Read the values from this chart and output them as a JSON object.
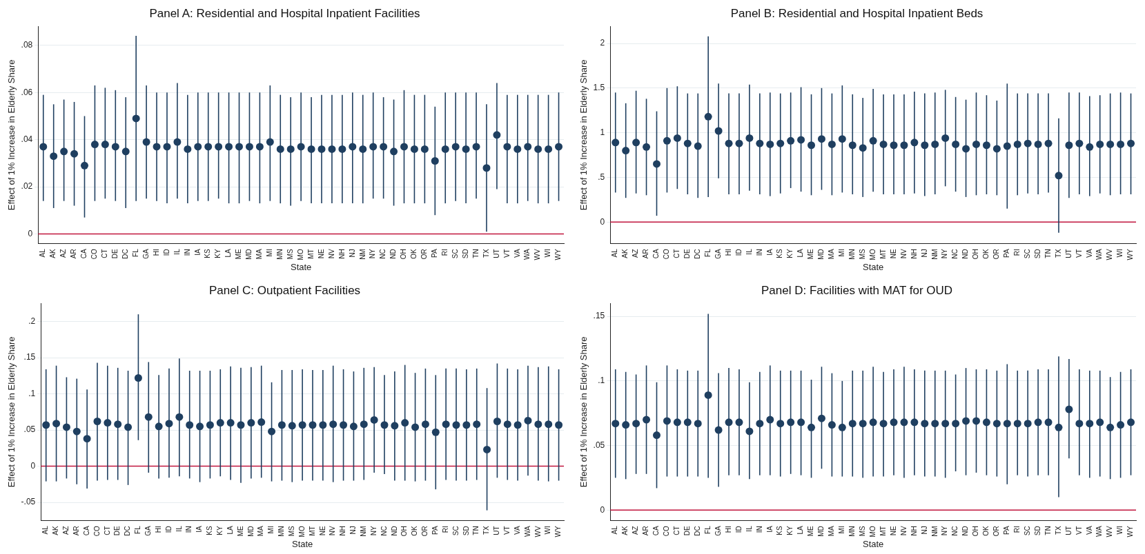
{
  "chart_data": [
    {
      "type": "scatter",
      "title": "Panel A: Residential and Hospital Inpatient Facilities",
      "xlabel": "State",
      "ylabel": "Effect of 1% Increase in Elderly Share",
      "color": "#1f3f60",
      "marker": "circle",
      "grid": "y",
      "legend": false,
      "categories": [
        "AL",
        "AK",
        "AZ",
        "AR",
        "CA",
        "CO",
        "CT",
        "DE",
        "DC",
        "FL",
        "GA",
        "HI",
        "ID",
        "IL",
        "IN",
        "IA",
        "KS",
        "KY",
        "LA",
        "ME",
        "MD",
        "MA",
        "MI",
        "MN",
        "MS",
        "MO",
        "MT",
        "NE",
        "NV",
        "NH",
        "NJ",
        "NM",
        "NY",
        "NC",
        "ND",
        "OH",
        "OK",
        "OR",
        "PA",
        "RI",
        "SC",
        "SD",
        "TN",
        "TX",
        "UT",
        "VT",
        "VA",
        "WA",
        "WV",
        "WI",
        "WY"
      ],
      "values": [
        0.037,
        0.033,
        0.035,
        0.034,
        0.029,
        0.038,
        0.038,
        0.037,
        0.035,
        0.049,
        0.039,
        0.037,
        0.037,
        0.039,
        0.036,
        0.037,
        0.037,
        0.037,
        0.037,
        0.037,
        0.037,
        0.037,
        0.039,
        0.036,
        0.036,
        0.037,
        0.036,
        0.036,
        0.036,
        0.036,
        0.037,
        0.036,
        0.037,
        0.037,
        0.035,
        0.037,
        0.036,
        0.036,
        0.031,
        0.036,
        0.037,
        0.036,
        0.037,
        0.028,
        0.042,
        0.037,
        0.036,
        0.037,
        0.036,
        0.036,
        0.037
      ],
      "errors": [
        [
          0.014,
          0.059
        ],
        [
          0.011,
          0.055
        ],
        [
          0.014,
          0.057
        ],
        [
          0.012,
          0.056
        ],
        [
          0.007,
          0.05
        ],
        [
          0.014,
          0.063
        ],
        [
          0.015,
          0.062
        ],
        [
          0.014,
          0.061
        ],
        [
          0.011,
          0.058
        ],
        [
          0.014,
          0.084
        ],
        [
          0.015,
          0.063
        ],
        [
          0.014,
          0.06
        ],
        [
          0.013,
          0.06
        ],
        [
          0.015,
          0.064
        ],
        [
          0.013,
          0.059
        ],
        [
          0.014,
          0.06
        ],
        [
          0.014,
          0.06
        ],
        [
          0.015,
          0.06
        ],
        [
          0.013,
          0.06
        ],
        [
          0.013,
          0.06
        ],
        [
          0.014,
          0.06
        ],
        [
          0.013,
          0.06
        ],
        [
          0.014,
          0.063
        ],
        [
          0.013,
          0.059
        ],
        [
          0.012,
          0.058
        ],
        [
          0.014,
          0.06
        ],
        [
          0.013,
          0.058
        ],
        [
          0.013,
          0.059
        ],
        [
          0.013,
          0.059
        ],
        [
          0.013,
          0.059
        ],
        [
          0.013,
          0.06
        ],
        [
          0.013,
          0.059
        ],
        [
          0.015,
          0.06
        ],
        [
          0.015,
          0.058
        ],
        [
          0.012,
          0.057
        ],
        [
          0.013,
          0.061
        ],
        [
          0.013,
          0.059
        ],
        [
          0.013,
          0.059
        ],
        [
          0.008,
          0.054
        ],
        [
          0.013,
          0.06
        ],
        [
          0.014,
          0.06
        ],
        [
          0.013,
          0.06
        ],
        [
          0.015,
          0.06
        ],
        [
          0.001,
          0.055
        ],
        [
          0.019,
          0.064
        ],
        [
          0.013,
          0.059
        ],
        [
          0.013,
          0.059
        ],
        [
          0.014,
          0.059
        ],
        [
          0.013,
          0.059
        ],
        [
          0.013,
          0.059
        ],
        [
          0.014,
          0.06
        ]
      ],
      "ylim": [
        -0.004,
        0.088
      ],
      "yticks": [
        0,
        {
          "value": 0.02,
          "label": ".02"
        },
        {
          "value": 0.04,
          "label": ".04"
        },
        {
          "value": 0.06,
          "label": ".06"
        },
        {
          "value": 0.08,
          "label": ".08"
        }
      ],
      "ref_lines": [
        {
          "axis": "y",
          "value": 0,
          "color": "#c0143c"
        }
      ]
    },
    {
      "type": "scatter",
      "title": "Panel B: Residential and Hospital Inpatient Beds",
      "xlabel": "State",
      "ylabel": "Effect of 1% Increase in Elderly Share",
      "color": "#1f3f60",
      "marker": "circle",
      "grid": "y",
      "legend": false,
      "categories": [
        "AL",
        "AK",
        "AZ",
        "AR",
        "CA",
        "CO",
        "CT",
        "DE",
        "DC",
        "FL",
        "GA",
        "HI",
        "ID",
        "IL",
        "IN",
        "IA",
        "KS",
        "KY",
        "LA",
        "ME",
        "MD",
        "MA",
        "MI",
        "MN",
        "MS",
        "MO",
        "MT",
        "NE",
        "NV",
        "NH",
        "NJ",
        "NM",
        "NY",
        "NC",
        "ND",
        "OH",
        "OK",
        "OR",
        "PA",
        "RI",
        "SC",
        "SD",
        "TN",
        "TX",
        "UT",
        "VT",
        "VA",
        "WA",
        "WV",
        "WI",
        "WY"
      ],
      "values": [
        0.89,
        0.8,
        0.89,
        0.84,
        0.65,
        0.91,
        0.94,
        0.88,
        0.85,
        1.18,
        1.02,
        0.88,
        0.88,
        0.94,
        0.88,
        0.87,
        0.88,
        0.91,
        0.92,
        0.86,
        0.93,
        0.87,
        0.93,
        0.86,
        0.83,
        0.91,
        0.87,
        0.86,
        0.86,
        0.89,
        0.86,
        0.87,
        0.94,
        0.87,
        0.82,
        0.87,
        0.86,
        0.82,
        0.85,
        0.87,
        0.88,
        0.87,
        0.88,
        0.52,
        0.86,
        0.88,
        0.84,
        0.87,
        0.87,
        0.87,
        0.88
      ],
      "errors": [
        [
          0.33,
          1.45
        ],
        [
          0.27,
          1.33
        ],
        [
          0.32,
          1.47
        ],
        [
          0.3,
          1.38
        ],
        [
          0.07,
          1.24
        ],
        [
          0.33,
          1.5
        ],
        [
          0.37,
          1.52
        ],
        [
          0.31,
          1.44
        ],
        [
          0.27,
          1.44
        ],
        [
          0.28,
          2.08
        ],
        [
          0.49,
          1.55
        ],
        [
          0.31,
          1.44
        ],
        [
          0.31,
          1.44
        ],
        [
          0.35,
          1.54
        ],
        [
          0.31,
          1.44
        ],
        [
          0.29,
          1.45
        ],
        [
          0.32,
          1.44
        ],
        [
          0.38,
          1.45
        ],
        [
          0.34,
          1.51
        ],
        [
          0.3,
          1.43
        ],
        [
          0.36,
          1.5
        ],
        [
          0.3,
          1.44
        ],
        [
          0.33,
          1.53
        ],
        [
          0.31,
          1.43
        ],
        [
          0.28,
          1.39
        ],
        [
          0.34,
          1.49
        ],
        [
          0.31,
          1.43
        ],
        [
          0.31,
          1.43
        ],
        [
          0.31,
          1.43
        ],
        [
          0.32,
          1.46
        ],
        [
          0.29,
          1.44
        ],
        [
          0.31,
          1.45
        ],
        [
          0.4,
          1.48
        ],
        [
          0.34,
          1.4
        ],
        [
          0.28,
          1.37
        ],
        [
          0.3,
          1.45
        ],
        [
          0.31,
          1.42
        ],
        [
          0.3,
          1.36
        ],
        [
          0.15,
          1.55
        ],
        [
          0.3,
          1.44
        ],
        [
          0.32,
          1.44
        ],
        [
          0.31,
          1.44
        ],
        [
          0.33,
          1.44
        ],
        [
          -0.12,
          1.16
        ],
        [
          0.27,
          1.45
        ],
        [
          0.31,
          1.45
        ],
        [
          0.29,
          1.41
        ],
        [
          0.32,
          1.42
        ],
        [
          0.3,
          1.44
        ],
        [
          0.31,
          1.45
        ],
        [
          0.31,
          1.44
        ]
      ],
      "ylim": [
        -0.24,
        2.19
      ],
      "yticks": [
        0,
        {
          "value": 0.5,
          "label": ".5"
        },
        1,
        1.5,
        2
      ],
      "ref_lines": [
        {
          "axis": "y",
          "value": 0,
          "color": "#c0143c"
        }
      ]
    },
    {
      "type": "scatter",
      "title": "Panel C: Outpatient Facilities",
      "xlabel": "State",
      "ylabel": "Effect of 1% Increase in Elderly Share",
      "color": "#1f3f60",
      "marker": "circle",
      "grid": "y",
      "legend": false,
      "categories": [
        "AL",
        "AK",
        "AZ",
        "AR",
        "CA",
        "CO",
        "CT",
        "DE",
        "DC",
        "FL",
        "GA",
        "HI",
        "ID",
        "IL",
        "IN",
        "IA",
        "KS",
        "KY",
        "LA",
        "ME",
        "MD",
        "MA",
        "MI",
        "MN",
        "MS",
        "MO",
        "MT",
        "NE",
        "NV",
        "NH",
        "NJ",
        "NM",
        "NY",
        "NC",
        "ND",
        "OH",
        "OK",
        "OR",
        "PA",
        "RI",
        "SC",
        "SD",
        "TN",
        "TX",
        "UT",
        "VT",
        "VA",
        "WA",
        "WV",
        "WI",
        "WY"
      ],
      "values": [
        0.057,
        0.059,
        0.054,
        0.048,
        0.038,
        0.062,
        0.06,
        0.058,
        0.054,
        0.122,
        0.068,
        0.055,
        0.059,
        0.068,
        0.057,
        0.055,
        0.057,
        0.06,
        0.06,
        0.057,
        0.06,
        0.061,
        0.048,
        0.057,
        0.056,
        0.057,
        0.057,
        0.057,
        0.058,
        0.057,
        0.055,
        0.058,
        0.064,
        0.057,
        0.056,
        0.06,
        0.054,
        0.058,
        0.047,
        0.058,
        0.057,
        0.057,
        0.058,
        0.023,
        0.062,
        0.058,
        0.057,
        0.063,
        0.058,
        0.058,
        0.057
      ],
      "errors": [
        [
          -0.021,
          0.134
        ],
        [
          -0.021,
          0.139
        ],
        [
          -0.017,
          0.123
        ],
        [
          -0.025,
          0.121
        ],
        [
          -0.031,
          0.106
        ],
        [
          -0.02,
          0.143
        ],
        [
          -0.019,
          0.139
        ],
        [
          -0.019,
          0.136
        ],
        [
          -0.026,
          0.132
        ],
        [
          0.036,
          0.21
        ],
        [
          -0.009,
          0.144
        ],
        [
          -0.017,
          0.126
        ],
        [
          -0.016,
          0.135
        ],
        [
          -0.014,
          0.149
        ],
        [
          -0.017,
          0.132
        ],
        [
          -0.022,
          0.132
        ],
        [
          -0.017,
          0.132
        ],
        [
          -0.014,
          0.134
        ],
        [
          -0.019,
          0.138
        ],
        [
          -0.023,
          0.136
        ],
        [
          -0.017,
          0.137
        ],
        [
          -0.016,
          0.139
        ],
        [
          -0.021,
          0.116
        ],
        [
          -0.02,
          0.133
        ],
        [
          -0.022,
          0.133
        ],
        [
          -0.02,
          0.134
        ],
        [
          -0.02,
          0.133
        ],
        [
          -0.02,
          0.133
        ],
        [
          -0.022,
          0.139
        ],
        [
          -0.02,
          0.134
        ],
        [
          -0.02,
          0.131
        ],
        [
          -0.019,
          0.136
        ],
        [
          -0.009,
          0.137
        ],
        [
          -0.011,
          0.126
        ],
        [
          -0.02,
          0.131
        ],
        [
          -0.02,
          0.14
        ],
        [
          -0.021,
          0.129
        ],
        [
          -0.02,
          0.135
        ],
        [
          -0.032,
          0.126
        ],
        [
          -0.019,
          0.135
        ],
        [
          -0.02,
          0.135
        ],
        [
          -0.02,
          0.134
        ],
        [
          -0.019,
          0.135
        ],
        [
          -0.061,
          0.108
        ],
        [
          -0.016,
          0.142
        ],
        [
          -0.019,
          0.135
        ],
        [
          -0.02,
          0.134
        ],
        [
          -0.013,
          0.139
        ],
        [
          -0.02,
          0.137
        ],
        [
          -0.021,
          0.138
        ],
        [
          -0.02,
          0.134
        ]
      ],
      "ylim": [
        -0.075,
        0.225
      ],
      "yticks": [
        {
          "value": -0.05,
          "label": "-.05"
        },
        0,
        {
          "value": 0.05,
          "label": ".05"
        },
        {
          "value": 0.1,
          "label": ".1"
        },
        {
          "value": 0.15,
          "label": ".15"
        },
        {
          "value": 0.2,
          "label": ".2"
        }
      ],
      "ref_lines": [
        {
          "axis": "y",
          "value": 0,
          "color": "#c0143c"
        }
      ]
    },
    {
      "type": "scatter",
      "title": "Panel D: Facilities with MAT for OUD",
      "xlabel": "State",
      "ylabel": "Effect of 1% Increase in Elderly Share",
      "color": "#1f3f60",
      "marker": "circle",
      "grid": "y",
      "legend": false,
      "categories": [
        "AL",
        "AK",
        "AZ",
        "AR",
        "CA",
        "CO",
        "CT",
        "DE",
        "DC",
        "FL",
        "GA",
        "HI",
        "ID",
        "IL",
        "IN",
        "IA",
        "KS",
        "KY",
        "LA",
        "ME",
        "MD",
        "MA",
        "MI",
        "MN",
        "MS",
        "MO",
        "MT",
        "NE",
        "NV",
        "NH",
        "NJ",
        "NM",
        "NY",
        "NC",
        "ND",
        "OH",
        "OK",
        "OR",
        "PA",
        "RI",
        "SC",
        "SD",
        "TN",
        "TX",
        "UT",
        "VT",
        "VA",
        "WA",
        "WV",
        "WI",
        "WY"
      ],
      "values": [
        0.067,
        0.066,
        0.067,
        0.07,
        0.058,
        0.069,
        0.068,
        0.068,
        0.067,
        0.089,
        0.062,
        0.068,
        0.068,
        0.061,
        0.067,
        0.07,
        0.067,
        0.068,
        0.068,
        0.064,
        0.071,
        0.066,
        0.064,
        0.067,
        0.067,
        0.068,
        0.067,
        0.068,
        0.068,
        0.068,
        0.067,
        0.067,
        0.067,
        0.067,
        0.069,
        0.069,
        0.068,
        0.067,
        0.067,
        0.067,
        0.067,
        0.068,
        0.068,
        0.064,
        0.078,
        0.067,
        0.067,
        0.068,
        0.064,
        0.066,
        0.068
      ],
      "errors": [
        [
          0.025,
          0.109
        ],
        [
          0.024,
          0.107
        ],
        [
          0.028,
          0.105
        ],
        [
          0.028,
          0.112
        ],
        [
          0.017,
          0.099
        ],
        [
          0.026,
          0.112
        ],
        [
          0.026,
          0.109
        ],
        [
          0.026,
          0.108
        ],
        [
          0.026,
          0.108
        ],
        [
          0.025,
          0.152
        ],
        [
          0.018,
          0.106
        ],
        [
          0.027,
          0.11
        ],
        [
          0.027,
          0.109
        ],
        [
          0.024,
          0.099
        ],
        [
          0.027,
          0.107
        ],
        [
          0.027,
          0.112
        ],
        [
          0.026,
          0.108
        ],
        [
          0.028,
          0.108
        ],
        [
          0.027,
          0.108
        ],
        [
          0.025,
          0.101
        ],
        [
          0.032,
          0.111
        ],
        [
          0.026,
          0.106
        ],
        [
          0.026,
          0.1
        ],
        [
          0.026,
          0.108
        ],
        [
          0.025,
          0.108
        ],
        [
          0.026,
          0.111
        ],
        [
          0.026,
          0.107
        ],
        [
          0.027,
          0.109
        ],
        [
          0.025,
          0.111
        ],
        [
          0.027,
          0.109
        ],
        [
          0.026,
          0.108
        ],
        [
          0.026,
          0.108
        ],
        [
          0.025,
          0.108
        ],
        [
          0.03,
          0.105
        ],
        [
          0.027,
          0.11
        ],
        [
          0.029,
          0.109
        ],
        [
          0.027,
          0.109
        ],
        [
          0.026,
          0.108
        ],
        [
          0.02,
          0.113
        ],
        [
          0.027,
          0.108
        ],
        [
          0.026,
          0.108
        ],
        [
          0.027,
          0.109
        ],
        [
          0.027,
          0.109
        ],
        [
          0.01,
          0.119
        ],
        [
          0.04,
          0.117
        ],
        [
          0.027,
          0.109
        ],
        [
          0.025,
          0.108
        ],
        [
          0.026,
          0.108
        ],
        [
          0.024,
          0.103
        ],
        [
          0.025,
          0.107
        ],
        [
          0.027,
          0.109
        ]
      ],
      "ylim": [
        -0.008,
        0.16
      ],
      "yticks": [
        0,
        {
          "value": 0.05,
          "label": ".05"
        },
        {
          "value": 0.1,
          "label": ".1"
        },
        {
          "value": 0.15,
          "label": ".15"
        }
      ],
      "ref_lines": [
        {
          "axis": "y",
          "value": 0,
          "color": "#c0143c"
        }
      ]
    }
  ]
}
